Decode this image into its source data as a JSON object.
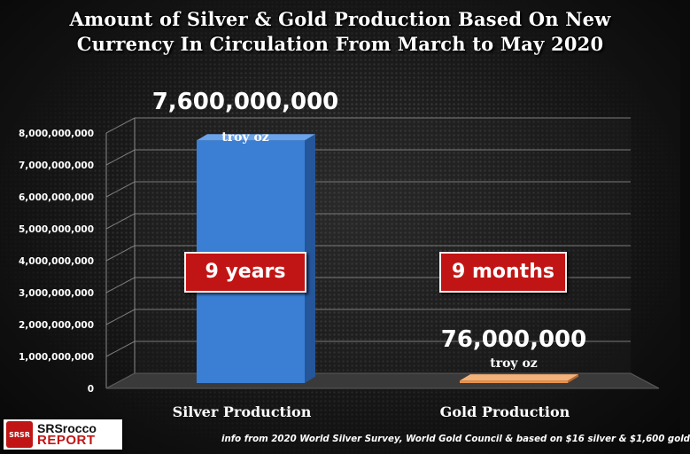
{
  "title_line1": "Amount of Silver & Gold Production Based On New",
  "title_line2": "Currency In Circulation From March to May 2020",
  "chart_data": {
    "type": "bar",
    "categories": [
      "Silver Production",
      "Gold Production"
    ],
    "values": [
      7600000000,
      76000000
    ],
    "value_labels": [
      "7,600,000,000",
      "76,000,000"
    ],
    "unit_labels": [
      "troy oz",
      "troy oz"
    ],
    "duration_labels": [
      "9 years",
      "9 months"
    ],
    "ylim": [
      0,
      8000000000
    ],
    "y_ticks": [
      0,
      1000000000,
      2000000000,
      3000000000,
      4000000000,
      5000000000,
      6000000000,
      7000000000,
      8000000000
    ],
    "y_tick_labels": [
      "0",
      "1,000,000,000",
      "2,000,000,000",
      "3,000,000,000",
      "4,000,000,000",
      "5,000,000,000",
      "6,000,000,000",
      "7,000,000,000",
      "8,000,000,000"
    ],
    "colors": [
      "#3a7fd4",
      "#e8924a"
    ],
    "grid": true
  },
  "logo": {
    "mark": "SRSR",
    "line1": "SRSrocco",
    "line2": "REPORT"
  },
  "source_note": "info from 2020 World Silver Survey, World Gold Council & based on $16 silver & $1,600 gold"
}
